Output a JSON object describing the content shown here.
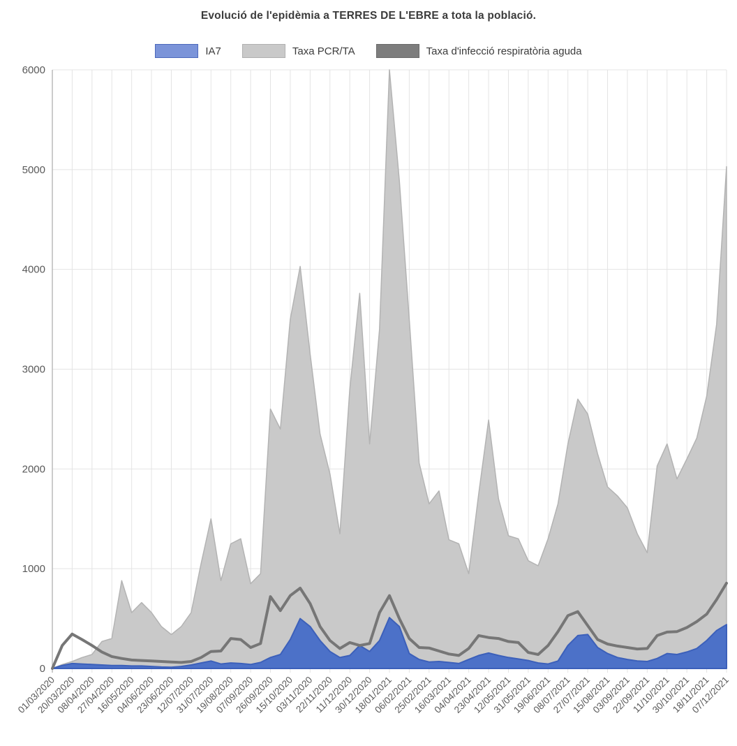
{
  "title": "Evolució de l'epidèmia a TERRES DE L'EBRE a tota la població.",
  "legend": [
    {
      "label": "IA7",
      "swatch_color": "#7b94d9",
      "swatch_border": "#4c68bb"
    },
    {
      "label": "Taxa PCR/TA",
      "swatch_color": "#c9c9c9",
      "swatch_border": "#b0b0b0"
    },
    {
      "label": "Taxa d'infecció respiratòria aguda",
      "swatch_color": "#7d7d7d",
      "swatch_border": "#6a6a6a"
    }
  ],
  "chart_data": {
    "type": "area",
    "title": "Evolució de l'epidèmia a TERRES DE L'EBRE a tota la població.",
    "xlabel": "",
    "ylabel": "",
    "ylim": [
      0,
      6000
    ],
    "y_ticks": [
      0,
      1000,
      2000,
      3000,
      4000,
      5000,
      6000
    ],
    "grid": true,
    "legend_position": "top",
    "x_range": [
      "01/03/2020",
      "07/12/2021"
    ],
    "sample_interval_days": 9.5,
    "x_tick_labels": [
      "01/03/2020",
      "20/03/2020",
      "08/04/2020",
      "27/04/2020",
      "16/05/2020",
      "04/06/2020",
      "23/06/2020",
      "12/07/2020",
      "31/07/2020",
      "19/08/2020",
      "07/09/2020",
      "26/09/2020",
      "15/10/2020",
      "03/11/2020",
      "22/11/2020",
      "11/12/2020",
      "30/12/2020",
      "18/01/2021",
      "06/02/2021",
      "25/02/2021",
      "16/03/2021",
      "04/04/2021",
      "23/04/2021",
      "12/05/2021",
      "31/05/2021",
      "19/06/2021",
      "08/07/2021",
      "27/07/2021",
      "15/08/2021",
      "03/09/2021",
      "22/09/2021",
      "11/10/2021",
      "30/10/2021",
      "18/11/2021",
      "07/12/2021"
    ],
    "series": [
      {
        "name": "Taxa PCR/TA",
        "type": "area",
        "color": "#c9c9c9",
        "border": "#b3b3b3",
        "values": [
          0,
          40,
          70,
          110,
          140,
          270,
          300,
          880,
          560,
          660,
          560,
          420,
          340,
          420,
          560,
          1050,
          1500,
          880,
          1250,
          1300,
          850,
          950,
          2600,
          2400,
          3500,
          4030,
          3150,
          2350,
          1950,
          1350,
          2800,
          3760,
          2250,
          3400,
          6000,
          4890,
          3500,
          2060,
          1650,
          1780,
          1290,
          1250,
          950,
          1750,
          2490,
          1700,
          1330,
          1300,
          1080,
          1030,
          1300,
          1650,
          2250,
          2700,
          2550,
          2150,
          1820,
          1730,
          1610,
          1350,
          1160,
          2030,
          2250,
          1900,
          2100,
          2310,
          2730,
          3450,
          5030
        ]
      },
      {
        "name": "IA7",
        "type": "area",
        "color": "#4c71c8",
        "border": "#3c60ba",
        "values": [
          0,
          30,
          50,
          45,
          40,
          35,
          30,
          30,
          25,
          25,
          20,
          15,
          12,
          20,
          35,
          55,
          75,
          45,
          55,
          50,
          40,
          60,
          110,
          140,
          290,
          500,
          420,
          280,
          170,
          110,
          130,
          230,
          170,
          280,
          510,
          420,
          150,
          90,
          65,
          70,
          60,
          50,
          90,
          130,
          155,
          130,
          110,
          95,
          80,
          55,
          45,
          75,
          230,
          330,
          340,
          210,
          150,
          110,
          90,
          75,
          70,
          100,
          150,
          140,
          165,
          200,
          280,
          380,
          440
        ]
      },
      {
        "name": "Taxa d'infecció respiratòria aguda",
        "type": "line",
        "color": "#767676",
        "values": [
          0,
          230,
          345,
          290,
          230,
          165,
          120,
          100,
          85,
          80,
          75,
          70,
          65,
          60,
          70,
          110,
          170,
          175,
          300,
          290,
          210,
          250,
          720,
          580,
          730,
          805,
          650,
          420,
          280,
          200,
          260,
          230,
          250,
          560,
          730,
          500,
          300,
          210,
          205,
          175,
          145,
          130,
          200,
          330,
          310,
          300,
          270,
          260,
          160,
          140,
          230,
          370,
          530,
          570,
          430,
          290,
          245,
          225,
          210,
          195,
          200,
          330,
          365,
          370,
          410,
          470,
          545,
          690,
          855
        ]
      }
    ]
  }
}
